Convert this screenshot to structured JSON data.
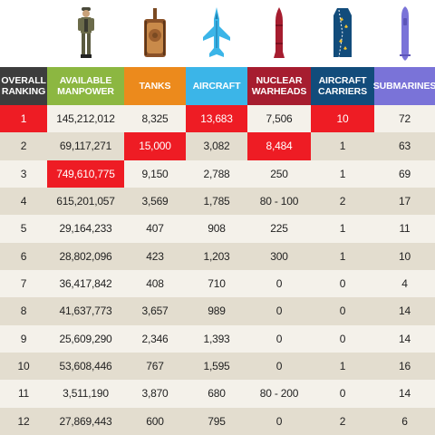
{
  "icons": [
    {
      "name": "soldier-icon",
      "column": "manpower"
    },
    {
      "name": "tank-icon",
      "column": "tanks"
    },
    {
      "name": "fighter-jet-icon",
      "column": "aircraft"
    },
    {
      "name": "warhead-icon",
      "column": "nuclear_warheads"
    },
    {
      "name": "aircraft-carrier-icon",
      "column": "aircraft_carriers"
    },
    {
      "name": "submarine-icon",
      "column": "submarines"
    }
  ],
  "header": {
    "ranking": "OVERALL RANKING",
    "manpower": "AVAILABLE MANPOWER",
    "tanks": "TANKS",
    "aircraft": "AIRCRAFT",
    "nuclear_warheads": "NUCLEAR WARHEADS",
    "aircraft_carriers": "AIRCRAFT CARRIERS",
    "submarines": "SUBMARINES"
  },
  "colors": {
    "ranking": "#3d3d3d",
    "manpower": "#8cb741",
    "tanks": "#ec8a1c",
    "aircraft": "#3bb5e8",
    "nuclear_warheads": "#a61d2f",
    "aircraft_carriers": "#124c7b",
    "submarines": "#7a73d8",
    "highlight": "#ee1c24",
    "row_light": "#f4f1ea",
    "row_dark": "#e3ddcf"
  },
  "rows": [
    {
      "rank": "1",
      "manpower": "145,212,012",
      "tanks": "8,325",
      "aircraft": "13,683",
      "nuclear_warheads": "7,506",
      "aircraft_carriers": "10",
      "submarines": "72",
      "highlight": [
        "rank",
        "aircraft",
        "aircraft_carriers"
      ]
    },
    {
      "rank": "2",
      "manpower": "69,117,271",
      "tanks": "15,000",
      "aircraft": "3,082",
      "nuclear_warheads": "8,484",
      "aircraft_carriers": "1",
      "submarines": "63",
      "highlight": [
        "tanks",
        "nuclear_warheads"
      ]
    },
    {
      "rank": "3",
      "manpower": "749,610,775",
      "tanks": "9,150",
      "aircraft": "2,788",
      "nuclear_warheads": "250",
      "aircraft_carriers": "1",
      "submarines": "69",
      "highlight": [
        "manpower"
      ]
    },
    {
      "rank": "4",
      "manpower": "615,201,057",
      "tanks": "3,569",
      "aircraft": "1,785",
      "nuclear_warheads": "80 - 100",
      "aircraft_carriers": "2",
      "submarines": "17",
      "highlight": []
    },
    {
      "rank": "5",
      "manpower": "29,164,233",
      "tanks": "407",
      "aircraft": "908",
      "nuclear_warheads": "225",
      "aircraft_carriers": "1",
      "submarines": "11",
      "highlight": []
    },
    {
      "rank": "6",
      "manpower": "28,802,096",
      "tanks": "423",
      "aircraft": "1,203",
      "nuclear_warheads": "300",
      "aircraft_carriers": "1",
      "submarines": "10",
      "highlight": []
    },
    {
      "rank": "7",
      "manpower": "36,417,842",
      "tanks": "408",
      "aircraft": "710",
      "nuclear_warheads": "0",
      "aircraft_carriers": "0",
      "submarines": "4",
      "highlight": []
    },
    {
      "rank": "8",
      "manpower": "41,637,773",
      "tanks": "3,657",
      "aircraft": "989",
      "nuclear_warheads": "0",
      "aircraft_carriers": "0",
      "submarines": "14",
      "highlight": []
    },
    {
      "rank": "9",
      "manpower": "25,609,290",
      "tanks": "2,346",
      "aircraft": "1,393",
      "nuclear_warheads": "0",
      "aircraft_carriers": "0",
      "submarines": "14",
      "highlight": []
    },
    {
      "rank": "10",
      "manpower": "53,608,446",
      "tanks": "767",
      "aircraft": "1,595",
      "nuclear_warheads": "0",
      "aircraft_carriers": "1",
      "submarines": "16",
      "highlight": []
    },
    {
      "rank": "11",
      "manpower": "3,511,190",
      "tanks": "3,870",
      "aircraft": "680",
      "nuclear_warheads": "80 - 200",
      "aircraft_carriers": "0",
      "submarines": "14",
      "highlight": []
    },
    {
      "rank": "12",
      "manpower": "27,869,443",
      "tanks": "600",
      "aircraft": "795",
      "nuclear_warheads": "0",
      "aircraft_carriers": "2",
      "submarines": "6",
      "highlight": []
    }
  ]
}
